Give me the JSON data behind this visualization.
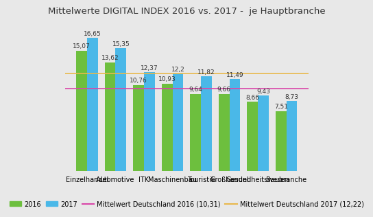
{
  "title": "Mittelwerte DIGITAL INDEX 2016 vs. 2017 -  je Hauptbranche",
  "categories": [
    "Einzelhandel",
    "Automotive",
    "ITK",
    "Maschinenbau",
    "Touristik",
    "Großhandel",
    "Gesundheitswesen",
    "Baubranche"
  ],
  "values_2016": [
    15.07,
    13.62,
    10.76,
    10.93,
    9.64,
    9.66,
    8.66,
    7.51
  ],
  "values_2017": [
    16.65,
    15.35,
    12.37,
    12.2,
    11.82,
    11.49,
    9.43,
    8.73
  ],
  "value_labels_2016": [
    "15,07",
    "13,62",
    "10,76",
    "10,93",
    "9,64",
    "9,66",
    "8,66",
    "7,51"
  ],
  "value_labels_2017": [
    "16,65",
    "15,35",
    "12,37",
    "12,2",
    "11,82",
    "11,49",
    "9,43",
    "8,73"
  ],
  "color_2016": "#6dbf3e",
  "color_2017": "#4ab8e8",
  "hline_2016": 10.31,
  "hline_2017": 12.22,
  "hline_2016_color": "#d946a8",
  "hline_2017_color": "#e8b84b",
  "hline_2016_label": "Mittelwert Deutschland 2016 (10,31)",
  "hline_2017_label": "Mittelwert Deutschland 2017 (12,22)",
  "legend_2016": "2016",
  "legend_2017": "2017",
  "ylim": [
    0,
    19
  ],
  "bar_width": 0.38,
  "title_fontsize": 9.5,
  "tick_fontsize": 7,
  "label_fontsize": 6.5,
  "legend_fontsize": 7,
  "background_color": "#e8e8e8"
}
